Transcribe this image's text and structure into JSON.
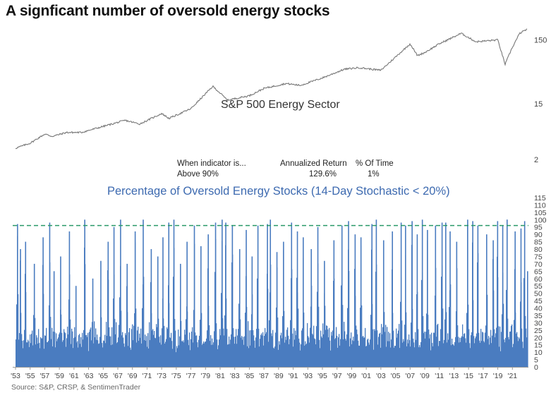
{
  "title": "A signficant number of oversold energy stocks",
  "source": "Source: S&P, CRSP, & SentimenTrader",
  "colors": {
    "price_line": "#777777",
    "bars": "#4a7cc0",
    "threshold": "#2a9a6a"
  },
  "table": {
    "headers": [
      "When indicator is...",
      "Annualized Return",
      "% Of Time"
    ],
    "row": [
      "Above 90%",
      "129.6%",
      "1%"
    ]
  },
  "chart_data": [
    {
      "type": "line",
      "title": "S&P 500 Energy Sector",
      "yscale": "log",
      "ylim": [
        2,
        400
      ],
      "yticks": [
        "150",
        "15",
        "2"
      ],
      "x_range": [
        1953,
        2023
      ],
      "series": [
        {
          "name": "S&P 500 Energy Sector",
          "x": [
            1953,
            1955,
            1957,
            1958,
            1960,
            1962,
            1965,
            1968,
            1970,
            1973,
            1974,
            1977,
            1980,
            1981,
            1982,
            1985,
            1987,
            1990,
            1992,
            1995,
            1998,
            2000,
            2003,
            2007,
            2008,
            2009,
            2011,
            2014,
            2016,
            2019,
            2020,
            2021,
            2022,
            2023
          ],
          "values": [
            3,
            3.6,
            5,
            4.6,
            5.3,
            5.3,
            6.6,
            8.2,
            7.2,
            10.5,
            8.8,
            12.5,
            28,
            22,
            17,
            20,
            26,
            31,
            29,
            38,
            52,
            55,
            50,
            130,
            85,
            95,
            130,
            190,
            140,
            150,
            62,
            115,
            190,
            220
          ]
        }
      ]
    },
    {
      "type": "bar",
      "title": "Percentage of Oversold Energy Stocks (14-Day Stochastic < 20%)",
      "ylim": [
        0,
        115
      ],
      "yticks": [
        "0",
        "5",
        "10",
        "15",
        "20",
        "25",
        "30",
        "35",
        "40",
        "45",
        "50",
        "55",
        "60",
        "65",
        "70",
        "75",
        "80",
        "85",
        "90",
        "95",
        "100",
        "105",
        "110",
        "115"
      ],
      "threshold": 96,
      "x_range": [
        1953,
        2023
      ],
      "xticks": [
        "'53",
        "'55",
        "'57",
        "'59",
        "'61",
        "'63",
        "'65",
        "'67",
        "'69",
        "'71",
        "'73",
        "'75",
        "'77",
        "'79",
        "'81",
        "'83",
        "'85",
        "'87",
        "'89",
        "'91",
        "'93",
        "'95",
        "'97",
        "'99",
        "'01",
        "'03",
        "'05",
        "'07",
        "'09",
        "'11",
        "'13",
        "'15",
        "'17",
        "'19",
        "'21"
      ],
      "peaks": [
        [
          1953.2,
          97
        ],
        [
          1953.6,
          80
        ],
        [
          1954.3,
          85
        ],
        [
          1955.5,
          70
        ],
        [
          1956.7,
          88
        ],
        [
          1957.6,
          98
        ],
        [
          1958.2,
          65
        ],
        [
          1959.1,
          75
        ],
        [
          1960.3,
          92
        ],
        [
          1961.2,
          55
        ],
        [
          1962.4,
          100
        ],
        [
          1963.5,
          60
        ],
        [
          1964.6,
          72
        ],
        [
          1965.6,
          85
        ],
        [
          1966.4,
          95
        ],
        [
          1967.3,
          100
        ],
        [
          1968.2,
          70
        ],
        [
          1969.3,
          92
        ],
        [
          1970.4,
          100
        ],
        [
          1971.5,
          80
        ],
        [
          1972.4,
          75
        ],
        [
          1973.1,
          88
        ],
        [
          1973.9,
          98
        ],
        [
          1974.6,
          100
        ],
        [
          1975.5,
          70
        ],
        [
          1976.4,
          85
        ],
        [
          1977.4,
          96
        ],
        [
          1978.3,
          82
        ],
        [
          1979.3,
          90
        ],
        [
          1980.3,
          98
        ],
        [
          1981.2,
          100
        ],
        [
          1981.7,
          98
        ],
        [
          1982.6,
          96
        ],
        [
          1983.6,
          80
        ],
        [
          1984.5,
          93
        ],
        [
          1985.3,
          75
        ],
        [
          1986.1,
          96
        ],
        [
          1987.4,
          97
        ],
        [
          1987.8,
          100
        ],
        [
          1988.7,
          78
        ],
        [
          1989.6,
          85
        ],
        [
          1990.7,
          98
        ],
        [
          1991.5,
          92
        ],
        [
          1992.3,
          88
        ],
        [
          1993.4,
          80
        ],
        [
          1994.3,
          95
        ],
        [
          1995.2,
          72
        ],
        [
          1996.5,
          86
        ],
        [
          1997.6,
          96
        ],
        [
          1998.5,
          99
        ],
        [
          1999.4,
          90
        ],
        [
          2000.2,
          88
        ],
        [
          2001.7,
          97
        ],
        [
          2002.3,
          100
        ],
        [
          2003.3,
          86
        ],
        [
          2004.5,
          92
        ],
        [
          2005.7,
          98
        ],
        [
          2006.3,
          96
        ],
        [
          2007.2,
          99
        ],
        [
          2007.9,
          90
        ],
        [
          2008.6,
          100
        ],
        [
          2009.3,
          93
        ],
        [
          2010.4,
          96
        ],
        [
          2011.3,
          98
        ],
        [
          2011.8,
          98
        ],
        [
          2012.4,
          92
        ],
        [
          2013.3,
          85
        ],
        [
          2014.8,
          100
        ],
        [
          2015.5,
          99
        ],
        [
          2016.2,
          96
        ],
        [
          2017.4,
          90
        ],
        [
          2018.3,
          86
        ],
        [
          2018.9,
          99
        ],
        [
          2019.6,
          96
        ],
        [
          2020.2,
          100
        ],
        [
          2021.3,
          92
        ],
        [
          2022.1,
          94
        ],
        [
          2022.6,
          99
        ],
        [
          2023.0,
          65
        ]
      ]
    }
  ]
}
